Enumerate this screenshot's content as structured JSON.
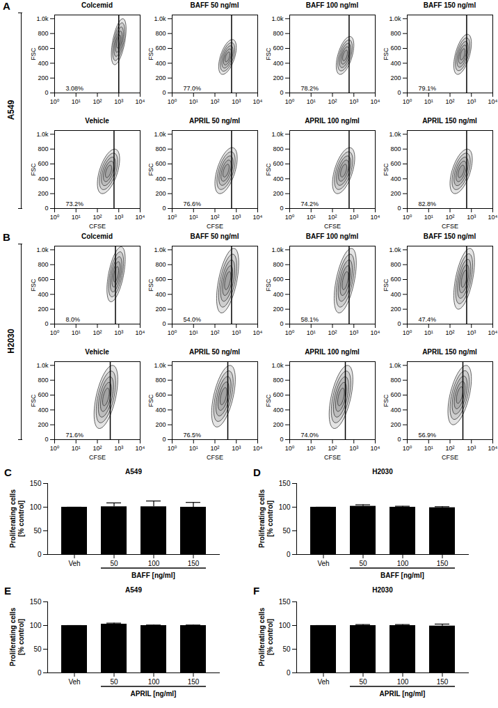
{
  "row_labels": [
    {
      "panel": "A",
      "label": "A549"
    },
    {
      "panel": "B",
      "label": "H2030"
    }
  ],
  "chart_data": [
    {
      "type": "contour",
      "panel": "A",
      "title": "Colcemid",
      "y_label": "FSC",
      "log": "x",
      "xlim": [
        1,
        10000
      ],
      "xticks": [
        {
          "value": 1,
          "label": "10⁰"
        },
        {
          "value": 10,
          "label": "10¹"
        },
        {
          "value": 100,
          "label": "10²"
        },
        {
          "value": 1000,
          "label": "10³"
        },
        {
          "value": 10000,
          "label": "10⁴"
        }
      ],
      "ylim": [
        0,
        1050
      ],
      "yticks": [
        0,
        200,
        400,
        600,
        800,
        {
          "value": 1000,
          "label": "1.0k"
        }
      ],
      "gate": 1000,
      "gate_label": "3.08%",
      "cloud": {
        "cfse": [
          450,
          2200
        ],
        "fsc": [
          380,
          1000
        ]
      }
    },
    {
      "type": "contour",
      "panel": "A",
      "title": "BAFF 50 ng/ml",
      "y_label": "FSC",
      "log": "x",
      "xlim": [
        1,
        10000
      ],
      "xticks": [
        {
          "value": 1,
          "label": "10⁰"
        },
        {
          "value": 10,
          "label": "10¹"
        },
        {
          "value": 100,
          "label": "10²"
        },
        {
          "value": 1000,
          "label": "10³"
        },
        {
          "value": 10000,
          "label": "10⁴"
        }
      ],
      "ylim": [
        0,
        1050
      ],
      "yticks": [
        0,
        200,
        400,
        600,
        800,
        {
          "value": 1000,
          "label": "1.0k"
        }
      ],
      "gate": 600,
      "gate_label": "77.0%",
      "cloud": {
        "cfse": [
          150,
          1000
        ],
        "fsc": [
          250,
          720
        ]
      }
    },
    {
      "type": "contour",
      "panel": "A",
      "title": "BAFF 100 ng/ml",
      "y_label": "FSC",
      "log": "x",
      "xlim": [
        1,
        10000
      ],
      "xticks": [
        {
          "value": 1,
          "label": "10⁰"
        },
        {
          "value": 10,
          "label": "10¹"
        },
        {
          "value": 100,
          "label": "10²"
        },
        {
          "value": 1000,
          "label": "10³"
        },
        {
          "value": 10000,
          "label": "10⁴"
        }
      ],
      "ylim": [
        0,
        1050
      ],
      "yticks": [
        0,
        200,
        400,
        600,
        800,
        {
          "value": 1000,
          "label": "1.0k"
        }
      ],
      "gate": 600,
      "gate_label": "78.2%",
      "cloud": {
        "cfse": [
          150,
          1000
        ],
        "fsc": [
          250,
          760
        ]
      }
    },
    {
      "type": "contour",
      "panel": "A",
      "title": "BAFF 150 ng/ml",
      "y_label": "FSC",
      "log": "x",
      "xlim": [
        1,
        10000
      ],
      "xticks": [
        {
          "value": 1,
          "label": "10⁰"
        },
        {
          "value": 10,
          "label": "10¹"
        },
        {
          "value": 100,
          "label": "10²"
        },
        {
          "value": 1000,
          "label": "10³"
        },
        {
          "value": 10000,
          "label": "10⁴"
        }
      ],
      "ylim": [
        0,
        1050
      ],
      "yticks": [
        0,
        200,
        400,
        600,
        800,
        {
          "value": 1000,
          "label": "1.0k"
        }
      ],
      "gate": 600,
      "gate_label": "79.1%",
      "cloud": {
        "cfse": [
          150,
          1000
        ],
        "fsc": [
          250,
          790
        ]
      }
    },
    {
      "type": "contour",
      "panel": "A",
      "title": "Vehicle",
      "x_label": "CFSE",
      "y_label": "FSC",
      "log": "x",
      "xlim": [
        1,
        10000
      ],
      "xticks": [
        {
          "value": 1,
          "label": "10⁰"
        },
        {
          "value": 10,
          "label": "10¹"
        },
        {
          "value": 100,
          "label": "10²"
        },
        {
          "value": 1000,
          "label": "10³"
        },
        {
          "value": 10000,
          "label": "10⁴"
        }
      ],
      "ylim": [
        0,
        1050
      ],
      "yticks": [
        0,
        200,
        400,
        600,
        800,
        {
          "value": 1000,
          "label": "1.0k"
        }
      ],
      "gate": 600,
      "gate_label": "73.2%",
      "cloud": {
        "cfse": [
          100,
          1100
        ],
        "fsc": [
          200,
          800
        ]
      }
    },
    {
      "type": "contour",
      "panel": "A",
      "title": "APRIL 50 ng/ml",
      "x_label": "CFSE",
      "y_label": "FSC",
      "log": "x",
      "xlim": [
        1,
        10000
      ],
      "xticks": [
        {
          "value": 1,
          "label": "10⁰"
        },
        {
          "value": 10,
          "label": "10¹"
        },
        {
          "value": 100,
          "label": "10²"
        },
        {
          "value": 1000,
          "label": "10³"
        },
        {
          "value": 10000,
          "label": "10⁴"
        }
      ],
      "ylim": [
        0,
        1050
      ],
      "yticks": [
        0,
        200,
        400,
        600,
        800,
        {
          "value": 1000,
          "label": "1.0k"
        }
      ],
      "gate": 600,
      "gate_label": "76.6%",
      "cloud": {
        "cfse": [
          100,
          1100
        ],
        "fsc": [
          200,
          820
        ]
      }
    },
    {
      "type": "contour",
      "panel": "A",
      "title": "APRIL 100 ng/ml",
      "x_label": "CFSE",
      "y_label": "FSC",
      "log": "x",
      "xlim": [
        1,
        10000
      ],
      "xticks": [
        {
          "value": 1,
          "label": "10⁰"
        },
        {
          "value": 10,
          "label": "10¹"
        },
        {
          "value": 100,
          "label": "10²"
        },
        {
          "value": 1000,
          "label": "10³"
        },
        {
          "value": 10000,
          "label": "10⁴"
        }
      ],
      "ylim": [
        0,
        1050
      ],
      "yticks": [
        0,
        200,
        400,
        600,
        800,
        {
          "value": 1000,
          "label": "1.0k"
        }
      ],
      "gate": 600,
      "gate_label": "74.2%",
      "cloud": {
        "cfse": [
          100,
          1100
        ],
        "fsc": [
          200,
          820
        ]
      }
    },
    {
      "type": "contour",
      "panel": "A",
      "title": "APRIL 150 ng/ml",
      "x_label": "CFSE",
      "y_label": "FSC",
      "log": "x",
      "xlim": [
        1,
        10000
      ],
      "xticks": [
        {
          "value": 1,
          "label": "10⁰"
        },
        {
          "value": 10,
          "label": "10¹"
        },
        {
          "value": 100,
          "label": "10²"
        },
        {
          "value": 1000,
          "label": "10³"
        },
        {
          "value": 10000,
          "label": "10⁴"
        }
      ],
      "ylim": [
        0,
        1050
      ],
      "yticks": [
        0,
        200,
        400,
        600,
        800,
        {
          "value": 1000,
          "label": "1.0k"
        }
      ],
      "gate": 600,
      "gate_label": "82.8%",
      "cloud": {
        "cfse": [
          100,
          1100
        ],
        "fsc": [
          200,
          800
        ]
      }
    },
    {
      "type": "contour",
      "panel": "B",
      "title": "Colcemid",
      "y_label": "FSC",
      "log": "x",
      "xlim": [
        1,
        10000
      ],
      "xticks": [
        {
          "value": 1,
          "label": "10⁰"
        },
        {
          "value": 10,
          "label": "10¹"
        },
        {
          "value": 100,
          "label": "10²"
        },
        {
          "value": 1000,
          "label": "10³"
        },
        {
          "value": 10000,
          "label": "10⁴"
        }
      ],
      "ylim": [
        0,
        1050
      ],
      "yticks": [
        0,
        200,
        400,
        600,
        800,
        {
          "value": 1000,
          "label": "1.0k"
        }
      ],
      "gate": 700,
      "gate_label": "8.0%",
      "cloud": {
        "cfse": [
          280,
          2000
        ],
        "fsc": [
          300,
          1040
        ]
      }
    },
    {
      "type": "contour",
      "panel": "B",
      "title": "BAFF 50 ng/ml",
      "y_label": "FSC",
      "log": "x",
      "xlim": [
        1,
        10000
      ],
      "xticks": [
        {
          "value": 1,
          "label": "10⁰"
        },
        {
          "value": 10,
          "label": "10¹"
        },
        {
          "value": 100,
          "label": "10²"
        },
        {
          "value": 1000,
          "label": "10³"
        },
        {
          "value": 10000,
          "label": "10⁴"
        }
      ],
      "ylim": [
        0,
        1050
      ],
      "yticks": [
        0,
        200,
        400,
        600,
        800,
        {
          "value": 1000,
          "label": "1.0k"
        }
      ],
      "gate": 600,
      "gate_label": "54.0%",
      "cloud": {
        "cfse": [
          120,
          1300
        ],
        "fsc": [
          150,
          1020
        ]
      }
    },
    {
      "type": "contour",
      "panel": "B",
      "title": "BAFF 100 ng/ml",
      "y_label": "FSC",
      "log": "x",
      "xlim": [
        1,
        10000
      ],
      "xticks": [
        {
          "value": 1,
          "label": "10⁰"
        },
        {
          "value": 10,
          "label": "10¹"
        },
        {
          "value": 100,
          "label": "10²"
        },
        {
          "value": 1000,
          "label": "10³"
        },
        {
          "value": 10000,
          "label": "10⁴"
        }
      ],
      "ylim": [
        0,
        1050
      ],
      "yticks": [
        0,
        200,
        400,
        600,
        800,
        {
          "value": 1000,
          "label": "1.0k"
        }
      ],
      "gate": 600,
      "gate_label": "58.1%",
      "cloud": {
        "cfse": [
          120,
          1300
        ],
        "fsc": [
          150,
          1020
        ]
      }
    },
    {
      "type": "contour",
      "panel": "B",
      "title": "BAFF 150 ng/ml",
      "y_label": "FSC",
      "log": "x",
      "xlim": [
        1,
        10000
      ],
      "xticks": [
        {
          "value": 1,
          "label": "10⁰"
        },
        {
          "value": 10,
          "label": "10¹"
        },
        {
          "value": 100,
          "label": "10²"
        },
        {
          "value": 1000,
          "label": "10³"
        },
        {
          "value": 10000,
          "label": "10⁴"
        }
      ],
      "ylim": [
        0,
        1050
      ],
      "yticks": [
        0,
        200,
        400,
        600,
        800,
        {
          "value": 1000,
          "label": "1.0k"
        }
      ],
      "gate": 600,
      "gate_label": "47.4%",
      "cloud": {
        "cfse": [
          150,
          1400
        ],
        "fsc": [
          200,
          1020
        ]
      }
    },
    {
      "type": "contour",
      "panel": "B",
      "title": "Vehicle",
      "x_label": "CFSE",
      "y_label": "FSC",
      "log": "x",
      "xlim": [
        1,
        10000
      ],
      "xticks": [
        {
          "value": 1,
          "label": "10⁰"
        },
        {
          "value": 10,
          "label": "10¹"
        },
        {
          "value": 100,
          "label": "10²"
        },
        {
          "value": 1000,
          "label": "10³"
        },
        {
          "value": 10000,
          "label": "10⁴"
        }
      ],
      "ylim": [
        0,
        1050
      ],
      "yticks": [
        0,
        200,
        400,
        600,
        800,
        {
          "value": 1000,
          "label": "1.0k"
        }
      ],
      "gate": 400,
      "gate_label": "71.6%",
      "cloud": {
        "cfse": [
          70,
          900
        ],
        "fsc": [
          150,
          1000
        ]
      }
    },
    {
      "type": "contour",
      "panel": "B",
      "title": "APRIL 50 ng/ml",
      "x_label": "CFSE",
      "y_label": "FSC",
      "log": "x",
      "xlim": [
        1,
        10000
      ],
      "xticks": [
        {
          "value": 1,
          "label": "10⁰"
        },
        {
          "value": 10,
          "label": "10¹"
        },
        {
          "value": 100,
          "label": "10²"
        },
        {
          "value": 1000,
          "label": "10³"
        },
        {
          "value": 10000,
          "label": "10⁴"
        }
      ],
      "ylim": [
        0,
        1050
      ],
      "yticks": [
        0,
        200,
        400,
        600,
        800,
        {
          "value": 1000,
          "label": "1.0k"
        }
      ],
      "gate": 400,
      "gate_label": "76.5%",
      "cloud": {
        "cfse": [
          70,
          900
        ],
        "fsc": [
          170,
          1000
        ]
      }
    },
    {
      "type": "contour",
      "panel": "B",
      "title": "APRIL 100 ng/ml",
      "x_label": "CFSE",
      "y_label": "FSC",
      "log": "x",
      "xlim": [
        1,
        10000
      ],
      "xticks": [
        {
          "value": 1,
          "label": "10⁰"
        },
        {
          "value": 10,
          "label": "10¹"
        },
        {
          "value": 100,
          "label": "10²"
        },
        {
          "value": 1000,
          "label": "10³"
        },
        {
          "value": 10000,
          "label": "10⁴"
        }
      ],
      "ylim": [
        0,
        1050
      ],
      "yticks": [
        0,
        200,
        400,
        600,
        800,
        {
          "value": 1000,
          "label": "1.0k"
        }
      ],
      "gate": 400,
      "gate_label": "74.0%",
      "cloud": {
        "cfse": [
          70,
          900
        ],
        "fsc": [
          150,
          1000
        ]
      }
    },
    {
      "type": "contour",
      "panel": "B",
      "title": "APRIL 150 ng/ml",
      "x_label": "CFSE",
      "y_label": "FSC",
      "log": "x",
      "xlim": [
        1,
        10000
      ],
      "xticks": [
        {
          "value": 1,
          "label": "10⁰"
        },
        {
          "value": 10,
          "label": "10¹"
        },
        {
          "value": 100,
          "label": "10²"
        },
        {
          "value": 1000,
          "label": "10³"
        },
        {
          "value": 10000,
          "label": "10⁴"
        }
      ],
      "ylim": [
        0,
        1050
      ],
      "yticks": [
        0,
        200,
        400,
        600,
        800,
        {
          "value": 1000,
          "label": "1.0k"
        }
      ],
      "gate": 400,
      "gate_label": "56.9%",
      "cloud": {
        "cfse": [
          80,
          1000
        ],
        "fsc": [
          200,
          1000
        ]
      }
    },
    {
      "type": "bar",
      "panel": "C",
      "title": "A549",
      "categories": [
        "Veh",
        "50",
        "100",
        "150"
      ],
      "values": [
        100,
        101,
        101,
        100
      ],
      "errors": [
        0,
        8,
        12,
        10
      ],
      "color": "#000000",
      "ylim": [
        0,
        150
      ],
      "yticks": [
        0,
        50,
        100,
        150
      ],
      "y_label": [
        "Proliferating cells",
        "[% control]"
      ],
      "x_label": "BAFF [ng/ml]"
    },
    {
      "type": "bar",
      "panel": "D",
      "title": "H2030",
      "categories": [
        "Veh",
        "50",
        "100",
        "150"
      ],
      "values": [
        100,
        102,
        100,
        99
      ],
      "errors": [
        0,
        3,
        2,
        2
      ],
      "color": "#000000",
      "ylim": [
        0,
        150
      ],
      "yticks": [
        0,
        50,
        100,
        150
      ],
      "y_label": [
        "Proliferating cells",
        "[% control]"
      ],
      "x_label": "BAFF [ng/ml]"
    },
    {
      "type": "bar",
      "panel": "E",
      "title": "A549",
      "categories": [
        "Veh",
        "50",
        "100",
        "150"
      ],
      "values": [
        100,
        103,
        100,
        100
      ],
      "errors": [
        0,
        2,
        1,
        1
      ],
      "color": "#000000",
      "ylim": [
        0,
        150
      ],
      "yticks": [
        0,
        50,
        100,
        150
      ],
      "y_label": [
        "Proliferating cells",
        "[% control]"
      ],
      "x_label": "APRIL [ng/ml]"
    },
    {
      "type": "bar",
      "panel": "F",
      "title": "H2030",
      "categories": [
        "Veh",
        "50",
        "100",
        "150"
      ],
      "values": [
        100,
        100,
        100,
        99
      ],
      "errors": [
        0,
        2,
        2,
        4
      ],
      "color": "#000000",
      "ylim": [
        0,
        150
      ],
      "yticks": [
        0,
        50,
        100,
        150
      ],
      "y_label": [
        "Proliferating cells",
        "[% control]"
      ],
      "x_label": "APRIL [ng/ml]"
    }
  ]
}
